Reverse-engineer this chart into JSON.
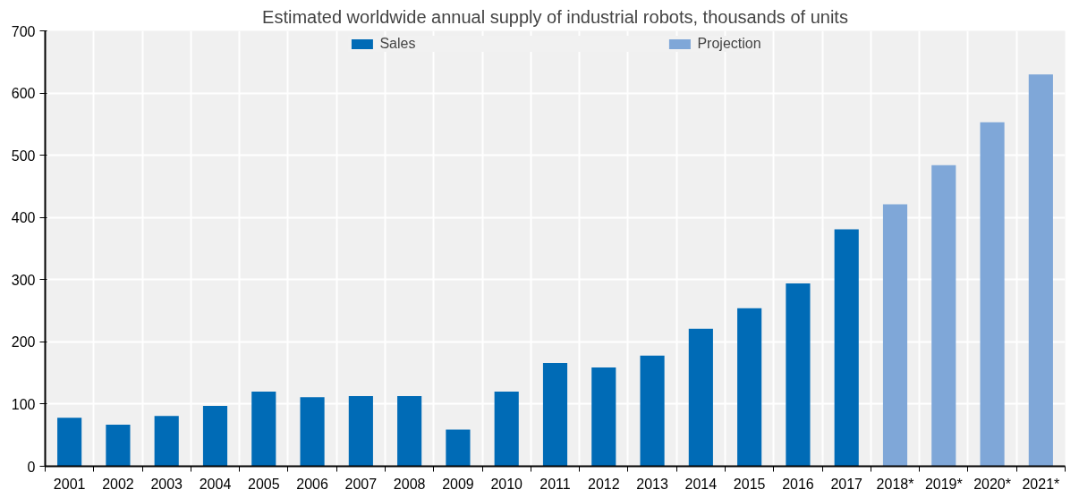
{
  "chart_data": {
    "type": "bar",
    "title": "Estimated worldwide annual supply of industrial robots, thousands of units",
    "categories": [
      "2001",
      "2002",
      "2003",
      "2004",
      "2005",
      "2006",
      "2007",
      "2008",
      "2009",
      "2010",
      "2011",
      "2012",
      "2013",
      "2014",
      "2015",
      "2016",
      "2017",
      "2018*",
      "2019*",
      "2020*",
      "2021*"
    ],
    "series": [
      {
        "name": "Sales",
        "color": "#006bb6",
        "values": [
          78,
          67,
          81,
          97,
          120,
          111,
          113,
          113,
          59,
          120,
          166,
          159,
          178,
          221,
          254,
          294,
          381,
          null,
          null,
          null,
          null
        ]
      },
      {
        "name": "Projection",
        "color": "#7fa7d8",
        "values": [
          null,
          null,
          null,
          null,
          null,
          null,
          null,
          null,
          null,
          null,
          null,
          null,
          null,
          null,
          null,
          null,
          null,
          421,
          484,
          553,
          630
        ]
      }
    ],
    "ylim": [
      0,
      700
    ],
    "yticks": [
      0,
      100,
      200,
      300,
      400,
      500,
      600,
      700
    ],
    "grid": true,
    "legend": "top"
  }
}
